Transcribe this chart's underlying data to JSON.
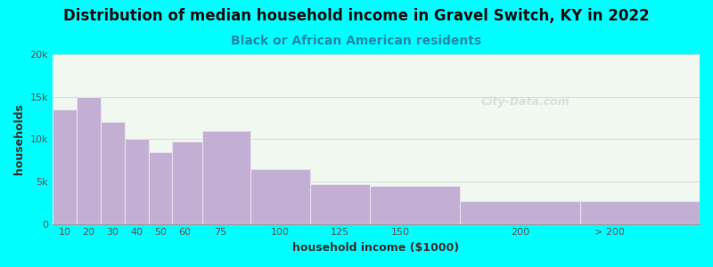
{
  "title": "Distribution of median household income in Gravel Switch, KY in 2022",
  "subtitle": "Black or African American residents",
  "xlabel": "household income ($1000)",
  "ylabel": "households",
  "background_outer": "#00FFFF",
  "background_inner": "#f0f8f0",
  "bar_color": "#c4afd4",
  "bar_edge_color": "#e8e0f0",
  "bar_linewidth": 0.8,
  "categories_labels": [
    "10",
    "20",
    "30",
    "40",
    "50",
    "60",
    "75",
    "100",
    "125",
    "150",
    "200",
    "> 200"
  ],
  "left_edges": [
    5,
    15,
    25,
    35,
    45,
    55,
    67.5,
    87.5,
    112.5,
    137.5,
    175,
    225
  ],
  "widths": [
    10,
    10,
    10,
    10,
    10,
    12.5,
    20,
    25,
    25,
    37.5,
    50,
    50
  ],
  "values": [
    13500,
    15000,
    12000,
    10000,
    8500,
    9700,
    11000,
    6500,
    4700,
    4500,
    2700,
    2700
  ],
  "xlim": [
    5,
    275
  ],
  "xtick_positions": [
    10,
    20,
    30,
    40,
    50,
    60,
    75,
    100,
    125,
    150,
    200,
    237.5
  ],
  "ylim": [
    0,
    20000
  ],
  "yticks": [
    0,
    5000,
    10000,
    15000,
    20000
  ],
  "ytick_labels": [
    "0",
    "5k",
    "10k",
    "15k",
    "20k"
  ],
  "title_fontsize": 12,
  "subtitle_fontsize": 10,
  "axis_label_fontsize": 9,
  "tick_fontsize": 8,
  "watermark_text": "City-Data.com",
  "watermark_color": "#b8c4d0",
  "watermark_alpha": 0.45
}
